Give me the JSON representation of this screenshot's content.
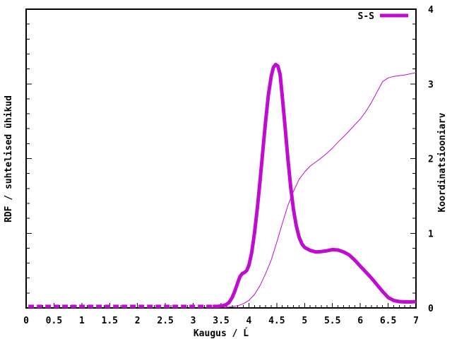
{
  "figure": {
    "background": "#ffffff",
    "axis_color": "#000000",
    "accent_color": "#C00CD0"
  },
  "chart_data": {
    "type": "line",
    "title": "",
    "xlabel": "Kaugus / Ĺ",
    "ylabel_left": "RDF / suhtelised ühikud",
    "ylabel_right": "Koordinatsiooniarv",
    "grid": false,
    "legend_position": "top-right-inside",
    "x_axis": {
      "min": 0,
      "max": 7,
      "major_step": 0.5,
      "minor_step": 0.1,
      "tick_labels": [
        "0",
        "0.5",
        "1",
        "1.5",
        "2",
        "2.5",
        "3",
        "3.5",
        "4",
        "4.5",
        "5",
        "5.5",
        "6",
        "6.5",
        "7"
      ]
    },
    "y_right_axis": {
      "min": 0,
      "max": 4,
      "major_step": 1,
      "minor_step": 0.2,
      "tick_labels": [
        "0",
        "1",
        "2",
        "3",
        "4"
      ]
    },
    "y_left_axis": {
      "labeled": false,
      "note": "left RDF axis is unlabeled; all series values below are read against the right-hand 0-4 scale"
    },
    "legend": {
      "entries": [
        {
          "label": "S-S",
          "style": "thick-solid",
          "color": "#C00CD0"
        }
      ]
    },
    "series": [
      {
        "name": "s-s-rdf-baseline",
        "legend_label": "S-S",
        "style": {
          "width": 5,
          "dash": [
            8,
            4
          ]
        },
        "points": [
          [
            0.04,
            0.02
          ],
          [
            3.35,
            0.02
          ]
        ]
      },
      {
        "name": "s-s-rdf",
        "legend_label": "S-S",
        "style": {
          "width": 5,
          "dash": null
        },
        "points": [
          [
            3.35,
            0.02
          ],
          [
            3.45,
            0.022
          ],
          [
            3.52,
            0.028
          ],
          [
            3.58,
            0.04
          ],
          [
            3.64,
            0.07
          ],
          [
            3.7,
            0.14
          ],
          [
            3.75,
            0.23
          ],
          [
            3.8,
            0.34
          ],
          [
            3.84,
            0.42
          ],
          [
            3.88,
            0.46
          ],
          [
            3.92,
            0.475
          ],
          [
            3.96,
            0.5
          ],
          [
            4.0,
            0.57
          ],
          [
            4.05,
            0.74
          ],
          [
            4.1,
            1.0
          ],
          [
            4.15,
            1.33
          ],
          [
            4.2,
            1.7
          ],
          [
            4.25,
            2.1
          ],
          [
            4.3,
            2.5
          ],
          [
            4.35,
            2.85
          ],
          [
            4.4,
            3.1
          ],
          [
            4.44,
            3.22
          ],
          [
            4.48,
            3.26
          ],
          [
            4.52,
            3.24
          ],
          [
            4.56,
            3.13
          ],
          [
            4.6,
            2.83
          ],
          [
            4.65,
            2.42
          ],
          [
            4.7,
            2.0
          ],
          [
            4.75,
            1.62
          ],
          [
            4.8,
            1.32
          ],
          [
            4.85,
            1.1
          ],
          [
            4.9,
            0.95
          ],
          [
            4.95,
            0.86
          ],
          [
            5.0,
            0.81
          ],
          [
            5.1,
            0.77
          ],
          [
            5.2,
            0.75
          ],
          [
            5.3,
            0.755
          ],
          [
            5.4,
            0.765
          ],
          [
            5.5,
            0.78
          ],
          [
            5.6,
            0.775
          ],
          [
            5.7,
            0.75
          ],
          [
            5.8,
            0.71
          ],
          [
            5.9,
            0.64
          ],
          [
            6.0,
            0.56
          ],
          [
            6.1,
            0.48
          ],
          [
            6.2,
            0.4
          ],
          [
            6.3,
            0.31
          ],
          [
            6.4,
            0.22
          ],
          [
            6.5,
            0.14
          ],
          [
            6.6,
            0.1
          ],
          [
            6.7,
            0.085
          ],
          [
            6.8,
            0.08
          ],
          [
            6.9,
            0.08
          ],
          [
            7.0,
            0.085
          ]
        ]
      },
      {
        "name": "coordination-number",
        "legend_label": null,
        "style": {
          "width": 1,
          "dash": null
        },
        "points": [
          [
            3.55,
            0.005
          ],
          [
            3.7,
            0.015
          ],
          [
            3.8,
            0.03
          ],
          [
            3.9,
            0.055
          ],
          [
            4.0,
            0.1
          ],
          [
            4.1,
            0.18
          ],
          [
            4.2,
            0.3
          ],
          [
            4.3,
            0.46
          ],
          [
            4.4,
            0.64
          ],
          [
            4.5,
            0.88
          ],
          [
            4.6,
            1.13
          ],
          [
            4.7,
            1.37
          ],
          [
            4.8,
            1.56
          ],
          [
            4.9,
            1.72
          ],
          [
            5.0,
            1.82
          ],
          [
            5.1,
            1.9
          ],
          [
            5.25,
            1.98
          ],
          [
            5.4,
            2.07
          ],
          [
            5.5,
            2.14
          ],
          [
            5.6,
            2.22
          ],
          [
            5.75,
            2.33
          ],
          [
            5.9,
            2.45
          ],
          [
            6.0,
            2.53
          ],
          [
            6.1,
            2.63
          ],
          [
            6.2,
            2.75
          ],
          [
            6.3,
            2.89
          ],
          [
            6.4,
            3.03
          ],
          [
            6.5,
            3.08
          ],
          [
            6.6,
            3.1
          ],
          [
            6.7,
            3.11
          ],
          [
            6.8,
            3.12
          ],
          [
            6.9,
            3.135
          ],
          [
            7.0,
            3.15
          ]
        ]
      }
    ]
  }
}
